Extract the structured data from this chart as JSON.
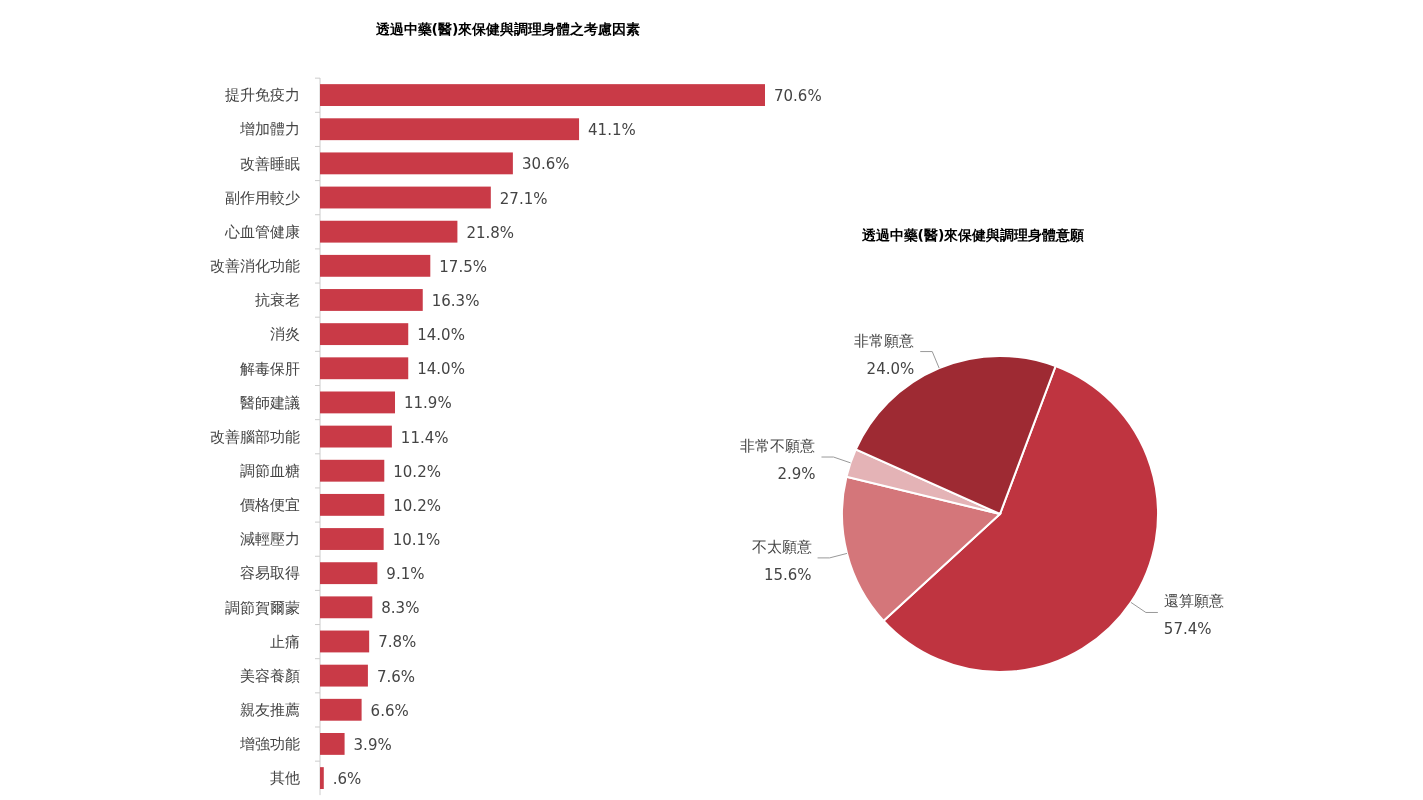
{
  "chart_data": [
    {
      "type": "bar",
      "orientation": "horizontal",
      "title": "透過中藥(醫)來保健與調理身體之考慮因素",
      "categories": [
        "提升免疫力",
        "增加體力",
        "改善睡眠",
        "副作用較少",
        "心血管健康",
        "改善消化功能",
        "抗衰老",
        "消炎",
        "解毒保肝",
        "醫師建議",
        "改善腦部功能",
        "調節血糖",
        "價格便宜",
        "減輕壓力",
        "容易取得",
        "調節賀爾蒙",
        "止痛",
        "美容養顏",
        "親友推薦",
        "增強功能",
        "其他"
      ],
      "values": [
        70.6,
        41.1,
        30.6,
        27.1,
        21.8,
        17.5,
        16.3,
        14.0,
        14.0,
        11.9,
        11.4,
        10.2,
        10.2,
        10.1,
        9.1,
        8.3,
        7.8,
        7.6,
        6.6,
        3.9,
        0.6
      ],
      "value_labels": [
        "70.6%",
        "41.1%",
        "30.6%",
        "27.1%",
        "21.8%",
        "17.5%",
        "16.3%",
        "14.0%",
        "14.0%",
        "11.9%",
        "11.4%",
        "10.2%",
        "10.2%",
        "10.1%",
        "9.1%",
        "8.3%",
        "7.8%",
        "7.6%",
        "6.6%",
        "3.9%",
        ".6%"
      ],
      "color": "#c93a47",
      "tick_labels": "y"
    },
    {
      "type": "pie",
      "title": "透過中藥(醫)來保健與調理身體意願",
      "categories": [
        "還算願意",
        "不太願意",
        "非常不願意",
        "非常願意"
      ],
      "values": [
        57.4,
        15.6,
        2.9,
        24.0
      ],
      "value_labels": [
        "57.4%",
        "15.6%",
        "2.9%",
        "24.0%"
      ],
      "colors": [
        "#bf3440",
        "#d4767a",
        "#e4b3b6",
        "#9e2a33"
      ]
    }
  ]
}
